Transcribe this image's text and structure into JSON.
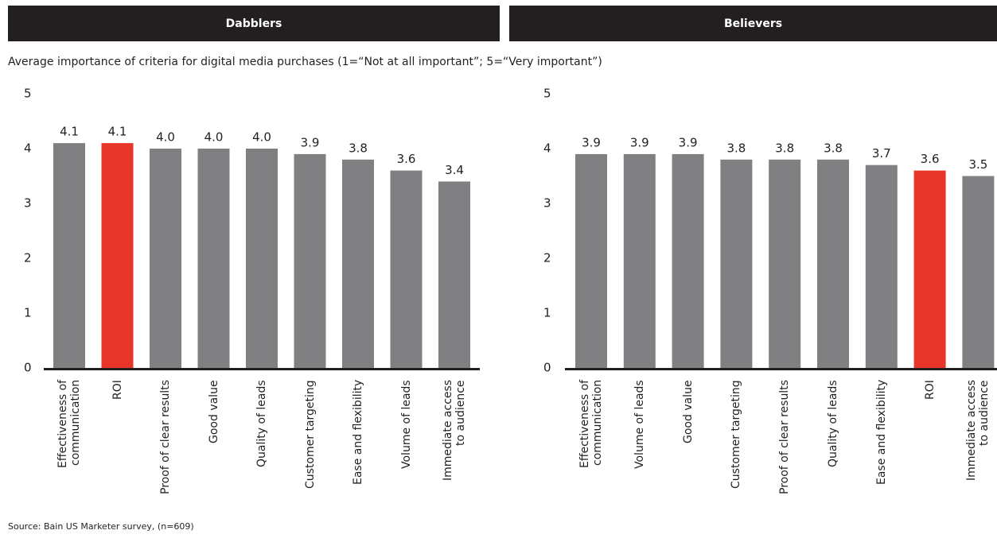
{
  "subtitle": "Average importance of criteria for digital media purchases (1=“Not at all important”; 5=“Very important”)",
  "source": "Source: Bain US Marketer survey, (n=609)",
  "chart_data": [
    {
      "type": "bar",
      "title": "Dabblers",
      "categories": [
        "Effectiveness of\ncommunication",
        "ROI",
        "Proof of clear results",
        "Good value",
        "Quality of leads",
        "Customer targeting",
        "Ease and flexibility",
        "Volume of leads",
        "Immediate access\nto audience"
      ],
      "values": [
        4.1,
        4.1,
        4.0,
        4.0,
        4.0,
        3.9,
        3.8,
        3.6,
        3.4
      ],
      "value_labels": [
        "4.1",
        "4.1",
        "4.0",
        "4.0",
        "4.0",
        "3.9",
        "3.8",
        "3.6",
        "3.4"
      ],
      "colors": [
        "#808083",
        "#e8352a",
        "#808083",
        "#808083",
        "#808083",
        "#808083",
        "#808083",
        "#808083",
        "#808083"
      ],
      "ylim": [
        0,
        5
      ],
      "yticks": [
        0,
        1,
        2,
        3,
        4,
        5
      ],
      "grid": false
    },
    {
      "type": "bar",
      "title": "Believers",
      "categories": [
        "Effectiveness of\ncommunication",
        "Volume of leads",
        "Good value",
        "Customer targeting",
        "Proof of clear results",
        "Quality of leads",
        "Ease and flexibility",
        "ROI",
        "Immediate access\nto audience"
      ],
      "values": [
        3.9,
        3.9,
        3.9,
        3.8,
        3.8,
        3.8,
        3.7,
        3.6,
        3.5
      ],
      "value_labels": [
        "3.9",
        "3.9",
        "3.9",
        "3.8",
        "3.8",
        "3.8",
        "3.7",
        "3.6",
        "3.5"
      ],
      "colors": [
        "#808083",
        "#808083",
        "#808083",
        "#808083",
        "#808083",
        "#808083",
        "#808083",
        "#e8352a",
        "#808083"
      ],
      "ylim": [
        0,
        5
      ],
      "yticks": [
        0,
        1,
        2,
        3,
        4,
        5
      ],
      "grid": false
    }
  ]
}
